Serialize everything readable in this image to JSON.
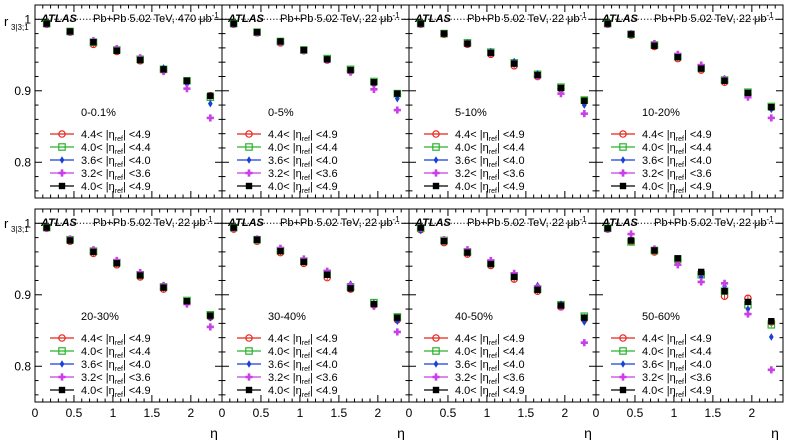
{
  "figure": {
    "ylabel_main": "r",
    "ylabel_sub": "3|3;1",
    "xlabel": "η"
  },
  "colors": {
    "4.4-4.9": "#e8241c",
    "4.0-4.4": "#2bb32b",
    "3.6-4.0": "#1a3fd6",
    "3.2-3.6": "#c93fe8",
    "4.0-4.9": "#000000"
  },
  "legend_entries": [
    {
      "key": "4.4-4.9",
      "lo": "4.4",
      "hi": "<4.9",
      "marker": "circle-open"
    },
    {
      "key": "4.0-4.4",
      "lo": "4.0",
      "hi": "<4.4",
      "marker": "square-open"
    },
    {
      "key": "3.6-4.0",
      "lo": "3.6",
      "hi": "<4.0",
      "marker": "diamond-filled"
    },
    {
      "key": "3.2-3.6",
      "lo": "3.2",
      "hi": "<3.6",
      "marker": "cross-filled"
    },
    {
      "key": "4.0-4.9",
      "lo": "4.0",
      "hi": "<4.9",
      "marker": "square-filled"
    }
  ],
  "chart_data": [
    {
      "type": "scatter",
      "atlas_label": "ATLAS",
      "system_label": "Pb+Pb 5.02 TeV, 470 μb",
      "lumi_exp": "-1",
      "centrality": "0-0.1%",
      "x": [
        0.15,
        0.45,
        0.75,
        1.05,
        1.35,
        1.65,
        1.95,
        2.25
      ],
      "xlim": [
        0,
        2.4
      ],
      "ylim": [
        0.75,
        1.02
      ],
      "reference_line": 1,
      "x_ticks": [
        "0",
        "0.5",
        "1",
        "1.5",
        "2"
      ],
      "y_ticks": [
        "0.8",
        "0.9",
        "1"
      ],
      "series": [
        {
          "key": "4.4-4.9",
          "values": [
            0.993,
            0.982,
            0.965,
            0.955,
            0.942,
            0.929,
            0.913,
            0.893
          ]
        },
        {
          "key": "4.0-4.4",
          "values": [
            0.994,
            0.983,
            0.968,
            0.957,
            0.944,
            0.93,
            0.914,
            0.891
          ]
        },
        {
          "key": "3.6-4.0",
          "values": [
            0.993,
            0.983,
            0.97,
            0.958,
            0.946,
            0.932,
            0.909,
            0.882
          ]
        },
        {
          "key": "3.2-3.6",
          "values": [
            0.993,
            0.982,
            0.97,
            0.959,
            0.946,
            0.927,
            0.903,
            0.862
          ]
        },
        {
          "key": "4.0-4.9",
          "values": [
            0.994,
            0.983,
            0.968,
            0.956,
            0.943,
            0.93,
            0.914,
            0.893
          ]
        }
      ]
    },
    {
      "type": "scatter",
      "atlas_label": "ATLAS",
      "system_label": "Pb+Pb 5.02 TeV, 22 μb",
      "lumi_exp": "-1",
      "centrality": "0-5%",
      "x": [
        0.15,
        0.45,
        0.75,
        1.05,
        1.35,
        1.65,
        1.95,
        2.25
      ],
      "xlim": [
        0,
        2.4
      ],
      "ylim": [
        0.75,
        1.02
      ],
      "reference_line": 1,
      "x_ticks": [
        "0",
        "0.5",
        "1",
        "1.5",
        "2"
      ],
      "y_ticks": [
        "0.8",
        "0.9",
        "1"
      ],
      "series": [
        {
          "key": "4.4-4.9",
          "values": [
            0.993,
            0.981,
            0.967,
            0.956,
            0.943,
            0.928,
            0.911,
            0.896
          ]
        },
        {
          "key": "4.0-4.4",
          "values": [
            0.994,
            0.982,
            0.969,
            0.957,
            0.945,
            0.93,
            0.913,
            0.896
          ]
        },
        {
          "key": "3.6-4.0",
          "values": [
            0.993,
            0.982,
            0.969,
            0.957,
            0.944,
            0.929,
            0.909,
            0.889
          ]
        },
        {
          "key": "3.2-3.6",
          "values": [
            0.993,
            0.981,
            0.968,
            0.956,
            0.943,
            0.926,
            0.902,
            0.873
          ]
        },
        {
          "key": "4.0-4.9",
          "values": [
            0.994,
            0.982,
            0.969,
            0.957,
            0.944,
            0.929,
            0.912,
            0.896
          ]
        }
      ]
    },
    {
      "type": "scatter",
      "atlas_label": "ATLAS",
      "system_label": "Pb+Pb 5.02 TeV, 22 μb",
      "lumi_exp": "-1",
      "centrality": "5-10%",
      "x": [
        0.15,
        0.45,
        0.75,
        1.05,
        1.35,
        1.65,
        1.95,
        2.25
      ],
      "xlim": [
        0,
        2.4
      ],
      "ylim": [
        0.75,
        1.02
      ],
      "reference_line": 1,
      "x_ticks": [
        "0",
        "0.5",
        "1",
        "1.5",
        "2"
      ],
      "y_ticks": [
        "0.8",
        "0.9",
        "1"
      ],
      "series": [
        {
          "key": "4.4-4.9",
          "values": [
            0.993,
            0.979,
            0.965,
            0.951,
            0.935,
            0.92,
            0.903,
            0.885
          ]
        },
        {
          "key": "4.0-4.4",
          "values": [
            0.994,
            0.98,
            0.967,
            0.954,
            0.939,
            0.923,
            0.905,
            0.887
          ]
        },
        {
          "key": "3.6-4.0",
          "values": [
            0.993,
            0.98,
            0.967,
            0.955,
            0.941,
            0.924,
            0.901,
            0.88
          ]
        },
        {
          "key": "3.2-3.6",
          "values": [
            0.993,
            0.98,
            0.966,
            0.953,
            0.938,
            0.92,
            0.896,
            0.868
          ]
        },
        {
          "key": "4.0-4.9",
          "values": [
            0.994,
            0.98,
            0.966,
            0.953,
            0.938,
            0.922,
            0.904,
            0.886
          ]
        }
      ]
    },
    {
      "type": "scatter",
      "atlas_label": "ATLAS",
      "system_label": "Pb+Pb 5.02 TeV, 22 μb",
      "lumi_exp": "-1",
      "centrality": "10-20%",
      "x": [
        0.15,
        0.45,
        0.75,
        1.05,
        1.35,
        1.65,
        1.95,
        2.25
      ],
      "xlim": [
        0,
        2.4
      ],
      "ylim": [
        0.75,
        1.02
      ],
      "reference_line": 1,
      "x_ticks": [
        "0",
        "0.5",
        "1",
        "1.5",
        "2"
      ],
      "y_ticks": [
        "0.8",
        "0.9",
        "1"
      ],
      "series": [
        {
          "key": "4.4-4.9",
          "values": [
            0.993,
            0.978,
            0.962,
            0.945,
            0.929,
            0.912,
            0.895,
            0.877
          ]
        },
        {
          "key": "4.0-4.4",
          "values": [
            0.994,
            0.979,
            0.964,
            0.948,
            0.932,
            0.915,
            0.898,
            0.878
          ]
        },
        {
          "key": "3.6-4.0",
          "values": [
            0.993,
            0.98,
            0.965,
            0.95,
            0.935,
            0.917,
            0.896,
            0.874
          ]
        },
        {
          "key": "3.2-3.6",
          "values": [
            0.993,
            0.98,
            0.966,
            0.951,
            0.936,
            0.916,
            0.891,
            0.862
          ]
        },
        {
          "key": "4.0-4.9",
          "values": [
            0.994,
            0.979,
            0.963,
            0.947,
            0.931,
            0.914,
            0.897,
            0.877
          ]
        }
      ]
    },
    {
      "type": "scatter",
      "atlas_label": "ATLAS",
      "system_label": "Pb+Pb 5.02 TeV, 22 μb",
      "lumi_exp": "-1",
      "centrality": "20-30%",
      "x": [
        0.15,
        0.45,
        0.75,
        1.05,
        1.35,
        1.65,
        1.95,
        2.25
      ],
      "xlim": [
        0,
        2.4
      ],
      "ylim": [
        0.75,
        1.02
      ],
      "reference_line": 1,
      "x_ticks": [
        "0",
        "0.5",
        "1",
        "1.5",
        "2"
      ],
      "y_ticks": [
        "0.8",
        "0.9",
        "1"
      ],
      "series": [
        {
          "key": "4.4-4.9",
          "values": [
            0.993,
            0.975,
            0.958,
            0.942,
            0.925,
            0.908,
            0.89,
            0.869
          ]
        },
        {
          "key": "4.0-4.4",
          "values": [
            0.994,
            0.977,
            0.961,
            0.945,
            0.928,
            0.911,
            0.892,
            0.872
          ]
        },
        {
          "key": "3.6-4.0",
          "values": [
            0.993,
            0.978,
            0.962,
            0.947,
            0.93,
            0.913,
            0.89,
            0.868
          ]
        },
        {
          "key": "3.2-3.6",
          "values": [
            0.993,
            0.978,
            0.963,
            0.948,
            0.931,
            0.913,
            0.887,
            0.855
          ]
        },
        {
          "key": "4.0-4.9",
          "values": [
            0.994,
            0.976,
            0.96,
            0.944,
            0.927,
            0.91,
            0.891,
            0.871
          ]
        }
      ]
    },
    {
      "type": "scatter",
      "atlas_label": "ATLAS",
      "system_label": "Pb+Pb 5.02 TeV, 22 μb",
      "lumi_exp": "-1",
      "centrality": "30-40%",
      "x": [
        0.15,
        0.45,
        0.75,
        1.05,
        1.35,
        1.65,
        1.95,
        2.25
      ],
      "xlim": [
        0,
        2.4
      ],
      "ylim": [
        0.75,
        1.02
      ],
      "reference_line": 1,
      "x_ticks": [
        "0",
        "0.5",
        "1",
        "1.5",
        "2"
      ],
      "y_ticks": [
        "0.8",
        "0.9",
        "1"
      ],
      "series": [
        {
          "key": "4.4-4.9",
          "values": [
            0.992,
            0.975,
            0.959,
            0.944,
            0.924,
            0.908,
            0.886,
            0.865
          ]
        },
        {
          "key": "4.0-4.4",
          "values": [
            0.994,
            0.977,
            0.962,
            0.947,
            0.93,
            0.911,
            0.889,
            0.869
          ]
        },
        {
          "key": "3.6-4.0",
          "values": [
            0.993,
            0.978,
            0.964,
            0.949,
            0.932,
            0.915,
            0.888,
            0.863
          ]
        },
        {
          "key": "3.2-3.6",
          "values": [
            0.993,
            0.978,
            0.965,
            0.95,
            0.933,
            0.913,
            0.884,
            0.848
          ]
        },
        {
          "key": "4.0-4.9",
          "values": [
            0.994,
            0.977,
            0.961,
            0.946,
            0.928,
            0.909,
            0.887,
            0.868
          ]
        }
      ]
    },
    {
      "type": "scatter",
      "atlas_label": "ATLAS",
      "system_label": "Pb+Pb 5.02 TeV, 22 μb",
      "lumi_exp": "-1",
      "centrality": "40-50%",
      "x": [
        0.15,
        0.45,
        0.75,
        1.05,
        1.35,
        1.65,
        1.95,
        2.25
      ],
      "xlim": [
        0,
        2.4
      ],
      "ylim": [
        0.75,
        1.02
      ],
      "reference_line": 1,
      "x_ticks": [
        "0",
        "0.5",
        "1",
        "1.5",
        "2"
      ],
      "y_ticks": [
        "0.8",
        "0.9",
        "1"
      ],
      "series": [
        {
          "key": "4.4-4.9",
          "values": [
            0.991,
            0.973,
            0.957,
            0.941,
            0.922,
            0.905,
            0.883,
            0.866
          ]
        },
        {
          "key": "4.0-4.4",
          "values": [
            0.993,
            0.976,
            0.96,
            0.944,
            0.926,
            0.908,
            0.886,
            0.87
          ]
        },
        {
          "key": "3.6-4.0",
          "values": [
            0.99,
            0.976,
            0.962,
            0.947,
            0.929,
            0.913,
            0.887,
            0.862
          ]
        },
        {
          "key": "3.2-3.6",
          "values": [
            0.993,
            0.977,
            0.963,
            0.948,
            0.93,
            0.911,
            0.883,
            0.833
          ]
        },
        {
          "key": "4.0-4.9",
          "values": [
            0.994,
            0.975,
            0.959,
            0.943,
            0.925,
            0.907,
            0.885,
            0.868
          ]
        }
      ]
    },
    {
      "type": "scatter",
      "atlas_label": "ATLAS",
      "system_label": "Pb+Pb 5.02 TeV, 22 μb",
      "lumi_exp": "-1",
      "centrality": "50-60%",
      "x": [
        0.15,
        0.45,
        0.75,
        1.05,
        1.35,
        1.65,
        1.95,
        2.25
      ],
      "xlim": [
        0,
        2.4
      ],
      "ylim": [
        0.75,
        1.02
      ],
      "reference_line": 1,
      "x_ticks": [
        "0",
        "0.5",
        "1",
        "1.5",
        "2"
      ],
      "y_ticks": [
        "0.8",
        "0.9",
        "1"
      ],
      "series": [
        {
          "key": "4.4-4.9",
          "values": [
            0.992,
            0.975,
            0.96,
            0.948,
            0.93,
            0.898,
            0.895,
            0.862
          ]
        },
        {
          "key": "4.0-4.4",
          "values": [
            0.993,
            0.974,
            0.962,
            0.95,
            0.928,
            0.905,
            0.886,
            0.858
          ]
        },
        {
          "key": "3.6-4.0",
          "values": [
            0.992,
            0.978,
            0.963,
            0.95,
            0.925,
            0.912,
            0.88,
            0.841
          ]
        },
        {
          "key": "3.2-3.6",
          "values": [
            0.992,
            0.985,
            0.964,
            0.942,
            0.918,
            0.916,
            0.873,
            0.795
          ]
        },
        {
          "key": "4.0-4.9",
          "values": [
            0.993,
            0.976,
            0.962,
            0.951,
            0.932,
            0.905,
            0.89,
            0.863
          ]
        }
      ]
    }
  ]
}
